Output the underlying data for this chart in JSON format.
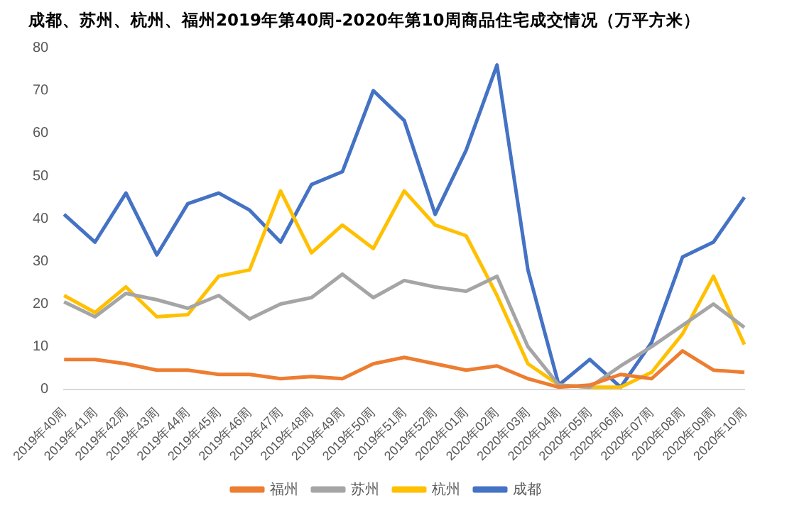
{
  "chart_data": {
    "type": "line",
    "title": "成都、苏州、杭州、福州2019年第40周-2020年第10周商品住宅成交情况（万平方米）",
    "categories": [
      "2019年40周",
      "2019年41周",
      "2019年42周",
      "2019年43周",
      "2019年44周",
      "2019年45周",
      "2019年46周",
      "2019年47周",
      "2019年48周",
      "2019年49周",
      "2019年50周",
      "2019年51周",
      "2019年52周",
      "2020年01周",
      "2020年02周",
      "2020年03周",
      "2020年04周",
      "2020年05周",
      "2020年06周",
      "2020年07周",
      "2020年08周",
      "2020年09周",
      "2020年10周"
    ],
    "series": [
      {
        "name": "福州",
        "color": "#ed7d31",
        "values": [
          7,
          7,
          6,
          4.5,
          4.5,
          3.5,
          3.5,
          2.5,
          3,
          2.5,
          6,
          7.5,
          6,
          4.5,
          5.5,
          2.5,
          0.5,
          1,
          3.5,
          2.5,
          9,
          4.5,
          4
        ]
      },
      {
        "name": "苏州",
        "color": "#a5a5a5",
        "values": [
          20.5,
          17,
          22.5,
          21,
          19,
          22,
          16.5,
          20,
          21.5,
          27,
          21.5,
          25.5,
          24,
          23,
          26.5,
          10,
          1,
          0.5,
          5.5,
          10,
          15,
          20,
          14.5
        ]
      },
      {
        "name": "杭州",
        "color": "#ffc000",
        "values": [
          22,
          18,
          24,
          17,
          17.5,
          26.5,
          28,
          46.5,
          32,
          38.5,
          33,
          46.5,
          38.5,
          36,
          22,
          6,
          1,
          0.5,
          0.5,
          4,
          13,
          26.5,
          10.5
        ]
      },
      {
        "name": "成都",
        "color": "#4472c4",
        "values": [
          41,
          34.5,
          46,
          31.5,
          43.5,
          46,
          42,
          34.5,
          48,
          51,
          70,
          63,
          41,
          56,
          76,
          28,
          1,
          7,
          0.5,
          11,
          31,
          34.5,
          45
        ]
      }
    ],
    "ylim": [
      0,
      80
    ],
    "yticks": [
      0,
      10,
      20,
      30,
      40,
      50,
      60,
      70,
      80
    ],
    "grid": false,
    "legend": "bottom",
    "marker": "none",
    "line_style": "solid"
  }
}
